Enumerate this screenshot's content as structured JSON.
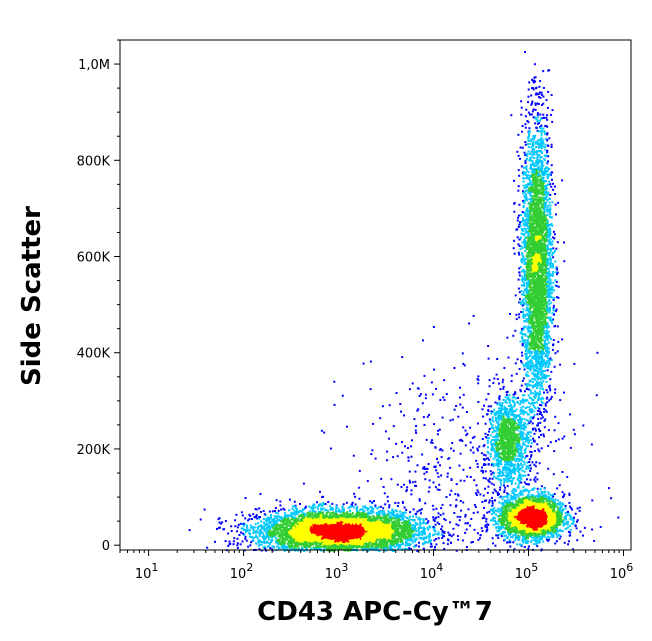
{
  "chart_data": {
    "type": "scatter",
    "title": "",
    "xlabel": "CD43 APC-Cy™7",
    "ylabel": "Side Scatter",
    "x_scale": "log",
    "y_scale": "linear",
    "xlim": [
      5,
      1200000
    ],
    "ylim": [
      -10000,
      1050000
    ],
    "x_ticks": [
      {
        "value": 10,
        "base": "10",
        "exp": "1"
      },
      {
        "value": 100,
        "base": "10",
        "exp": "2"
      },
      {
        "value": 1000,
        "base": "10",
        "exp": "3"
      },
      {
        "value": 10000,
        "base": "10",
        "exp": "4"
      },
      {
        "value": 100000,
        "base": "10",
        "exp": "5"
      },
      {
        "value": 1000000,
        "base": "10",
        "exp": "6"
      }
    ],
    "y_ticks": [
      {
        "value": 0,
        "label": "0"
      },
      {
        "value": 200000,
        "label": "200K"
      },
      {
        "value": 400000,
        "label": "400K"
      },
      {
        "value": 600000,
        "label": "600K"
      },
      {
        "value": 800000,
        "label": "800K"
      },
      {
        "value": 1000000,
        "label": "1,0M"
      }
    ],
    "grid": false,
    "legend": "none",
    "color_map": "density: blue → cyan → green → yellow → red",
    "populations": [
      {
        "x_center": 1000,
        "y_center": 30000,
        "x_spread_log": 0.42,
        "y_spread": 22000,
        "share": 0.42
      },
      {
        "x_center": 105000,
        "y_center": 60000,
        "x_spread_log": 0.17,
        "y_spread": 22000,
        "share": 0.2
      },
      {
        "x_center": 60000,
        "y_center": 220000,
        "x_spread_log": 0.1,
        "y_spread": 45000,
        "share": 0.08
      },
      {
        "x_center": 120000,
        "y_center": 580000,
        "x_spread_log": 0.08,
        "y_spread": 150000,
        "share": 0.26
      },
      {
        "x_center": 20000,
        "y_center": 150000,
        "x_spread_log": 0.6,
        "y_spread": 120000,
        "share": 0.04
      }
    ]
  },
  "colors": {
    "low": "#0000ff",
    "mid_low": "#00c8ff",
    "mid": "#32cd32",
    "mid_high": "#ffff00",
    "high": "#ff0000"
  }
}
